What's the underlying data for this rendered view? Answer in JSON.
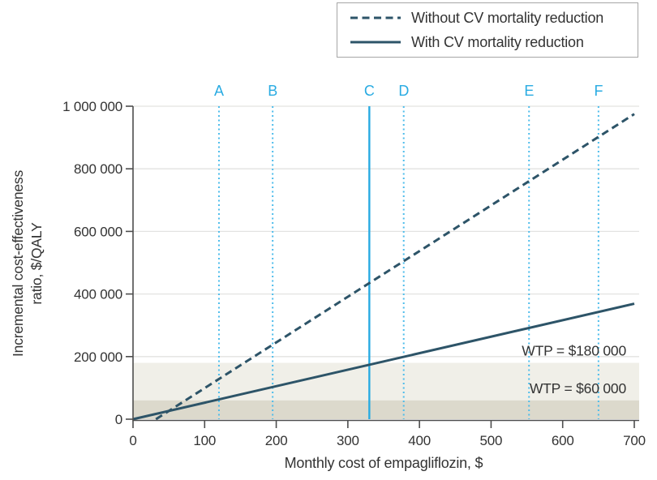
{
  "figure": {
    "kind": "cost-effectiveness line chart"
  },
  "colors": {
    "series": "#2d5468",
    "highlight": "#29abe2",
    "highlight_dotted": "#4cbceb",
    "band_light": "#f0efe8",
    "band_dark": "#dcd9cc",
    "grid": "#e3e3e1",
    "axis": "#4d4d4d",
    "text": "#333333",
    "legend_border": "#a6a6a6"
  },
  "legend": {
    "items": [
      {
        "label": "Without CV mortality reduction",
        "style": "dashed"
      },
      {
        "label": "With CV mortality reduction",
        "style": "solid"
      }
    ]
  },
  "chart_data": {
    "type": "line",
    "title": "",
    "xlabel": "Monthly cost of empagliflozin, $",
    "ylabel": "Incremental cost-effectiveness ratio, $/QALY",
    "ylabel_lines": [
      "Incremental cost-effectiveness",
      "ratio, $/QALY"
    ],
    "xlim": [
      0,
      700
    ],
    "ylim": [
      0,
      1000000
    ],
    "grid": "horizontal",
    "legend_position": "top-right",
    "xtick_values": [
      0,
      100,
      200,
      300,
      400,
      500,
      600,
      700
    ],
    "xtick_labels": [
      "0",
      "100",
      "200",
      "300",
      "400",
      "500",
      "600",
      "700"
    ],
    "ytick_values": [
      0,
      200000,
      400000,
      600000,
      800000,
      1000000
    ],
    "ytick_labels": [
      "0",
      "200 000",
      "400 000",
      "600 000",
      "800 000",
      "1 000 000"
    ],
    "series": [
      {
        "name": "Without CV mortality reduction",
        "style": "dashed",
        "points": [
          [
            32,
            0
          ],
          [
            700,
            975000
          ]
        ]
      },
      {
        "name": "With CV mortality reduction",
        "style": "solid",
        "points": [
          [
            0,
            0
          ],
          [
            700,
            369000
          ]
        ]
      }
    ],
    "price_markers": [
      {
        "label": "A",
        "x": 120,
        "style": "dotted"
      },
      {
        "label": "B",
        "x": 195,
        "style": "dotted"
      },
      {
        "label": "C",
        "x": 330,
        "style": "solid"
      },
      {
        "label": "D",
        "x": 378,
        "style": "dotted"
      },
      {
        "label": "E",
        "x": 553,
        "style": "dotted"
      },
      {
        "label": "F",
        "x": 650,
        "style": "dotted"
      }
    ],
    "wtp_bands": [
      {
        "label": "WTP = $180 000",
        "value": 180000,
        "shade": "light"
      },
      {
        "label": "WTP = $60 000",
        "value": 60000,
        "shade": "dark"
      }
    ]
  }
}
